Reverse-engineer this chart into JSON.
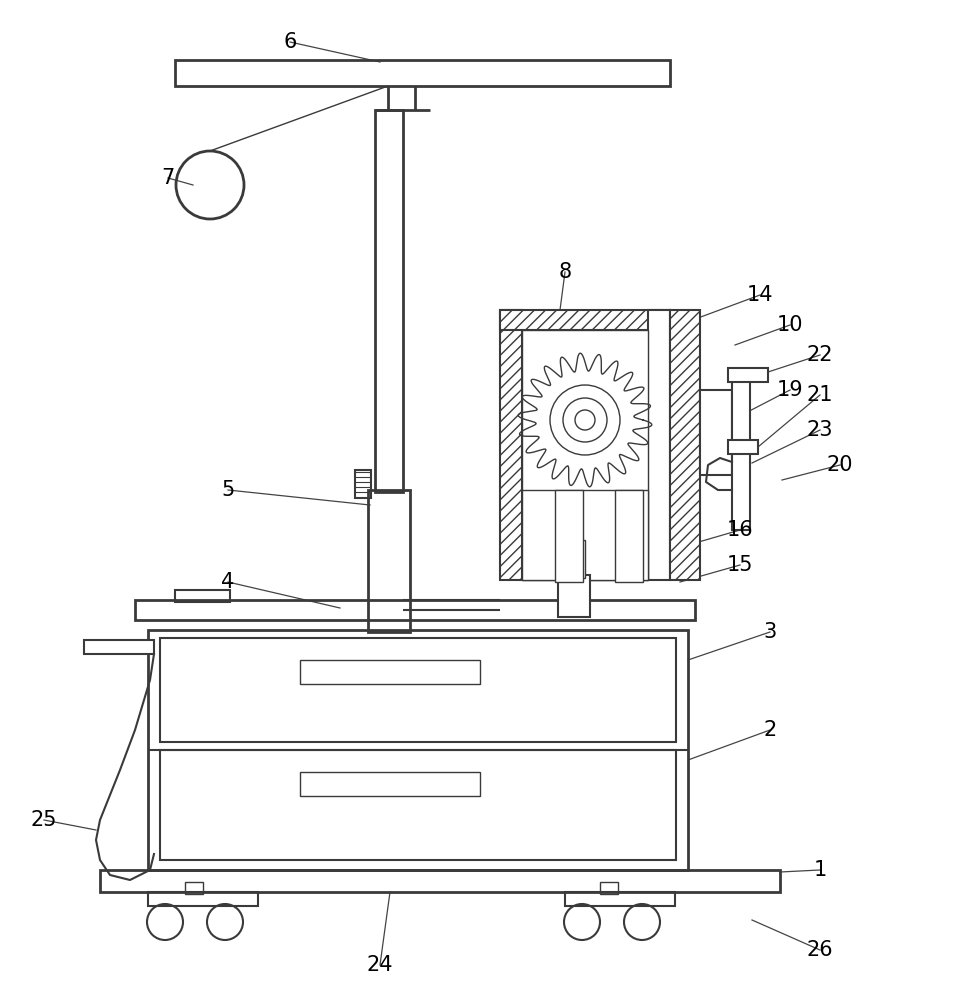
{
  "bg_color": "#ffffff",
  "line_color": "#3a3a3a",
  "label_color": "#000000",
  "lw_thin": 1.0,
  "lw_med": 1.5,
  "lw_thick": 2.0,
  "figsize": [
    9.57,
    10.0
  ]
}
